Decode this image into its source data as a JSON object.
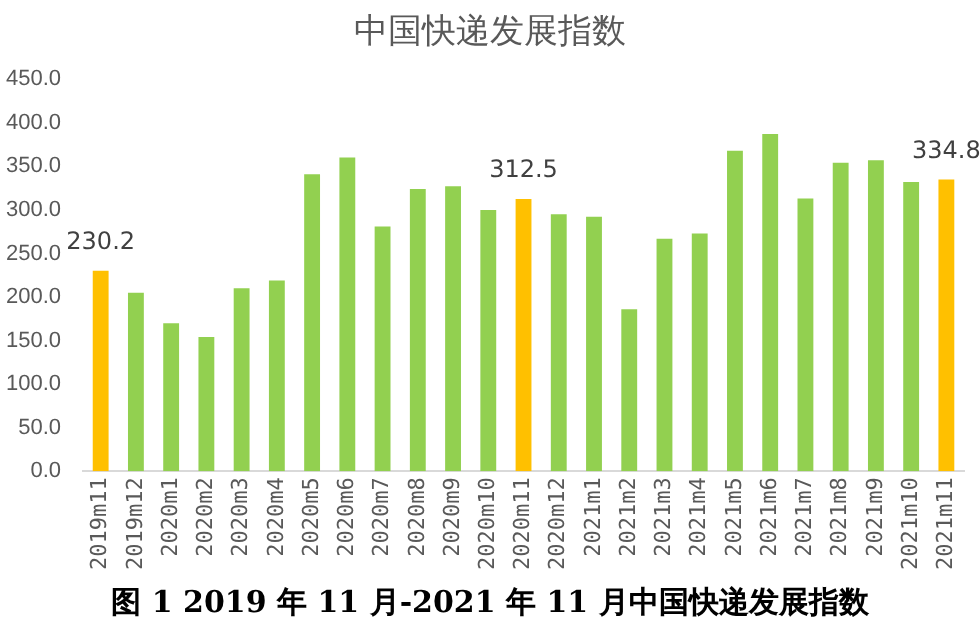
{
  "chart_data": {
    "type": "bar",
    "title": "中国快递发展指数",
    "categories": [
      "2019m11",
      "2019m12",
      "2020m1",
      "2020m2",
      "2020m3",
      "2020m4",
      "2020m5",
      "2020m6",
      "2020m7",
      "2020m8",
      "2020m9",
      "2020m10",
      "2020m11",
      "2020m12",
      "2021m1",
      "2021m2",
      "2021m3",
      "2021m4",
      "2021m5",
      "2021m6",
      "2021m7",
      "2021m8",
      "2021m9",
      "2021m10",
      "2021m11"
    ],
    "values": [
      230.2,
      205,
      170,
      154,
      210,
      219,
      341,
      360,
      281,
      324,
      327,
      300,
      312.5,
      295,
      292,
      186,
      267,
      273,
      368,
      387,
      313,
      354,
      357,
      332,
      334.8
    ],
    "colors": [
      "#ffc000",
      "#92d050",
      "#92d050",
      "#92d050",
      "#92d050",
      "#92d050",
      "#92d050",
      "#92d050",
      "#92d050",
      "#92d050",
      "#92d050",
      "#92d050",
      "#ffc000",
      "#92d050",
      "#92d050",
      "#92d050",
      "#92d050",
      "#92d050",
      "#92d050",
      "#92d050",
      "#92d050",
      "#92d050",
      "#92d050",
      "#92d050",
      "#ffc000"
    ],
    "value_labels": [
      "230.2",
      null,
      null,
      null,
      null,
      null,
      null,
      null,
      null,
      null,
      null,
      null,
      "312.5",
      null,
      null,
      null,
      null,
      null,
      null,
      null,
      null,
      null,
      null,
      null,
      "334.8"
    ],
    "ylim": [
      0,
      450
    ],
    "yticks": [
      {
        "value": 0,
        "label": "0.0"
      },
      {
        "value": 50,
        "label": "50.0"
      },
      {
        "value": 100,
        "label": "100.0"
      },
      {
        "value": 150,
        "label": "150.0"
      },
      {
        "value": 200,
        "label": "200.0"
      },
      {
        "value": 250,
        "label": "250.0"
      },
      {
        "value": 300,
        "label": "300.0"
      },
      {
        "value": 350,
        "label": "350.0"
      },
      {
        "value": 400,
        "label": "400.0"
      },
      {
        "value": 450,
        "label": "450.0"
      }
    ],
    "grid": false,
    "legend": false,
    "annotations": [
      "图 1 2019 年 11 月-2021 年 11 月中国快递发展指数"
    ]
  }
}
